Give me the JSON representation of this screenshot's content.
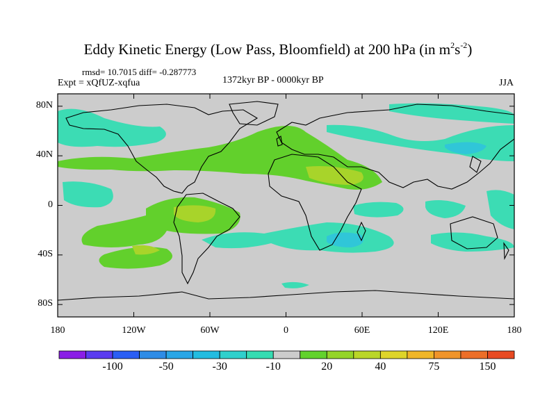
{
  "title": {
    "text": "Eddy Kinetic Energy (Low Pass, Bloomfield) at 200 hPa (in m",
    "sup1": "2",
    "mid": "s",
    "sup2": "-2",
    "end": ")"
  },
  "stats": "rmsd= 10.7015  diff= -0.287773",
  "expt": "Expt = xQfUZ-xqfua",
  "period": "1372kyr BP - 0000kyr BP",
  "season": "JJA",
  "lat_ticks": [
    "80N",
    "40N",
    "0",
    "40S",
    "80S"
  ],
  "lon_ticks": [
    "180",
    "120W",
    "60W",
    "0",
    "60E",
    "120E",
    "180"
  ],
  "colorbar": {
    "labels": [
      "-100",
      "-50",
      "-30",
      "-10",
      "20",
      "40",
      "75",
      "150"
    ],
    "colors": [
      "#8a1ee6",
      "#5a3cf0",
      "#2a5ef4",
      "#2e8ce6",
      "#29a6e6",
      "#22bce0",
      "#2fd0cc",
      "#36dcb2",
      "#cccccc",
      "#62d22c",
      "#94d428",
      "#bad628",
      "#ded42a",
      "#f0b628",
      "#f0942a",
      "#ec6e28",
      "#e84a22"
    ]
  },
  "map_colors": {
    "ocean": "#cccccc",
    "teal": "#3cdcb4",
    "cyan": "#30c6d8",
    "light_green": "#62d02c",
    "yellow_green": "#a8d42a",
    "coast": "#000000"
  }
}
